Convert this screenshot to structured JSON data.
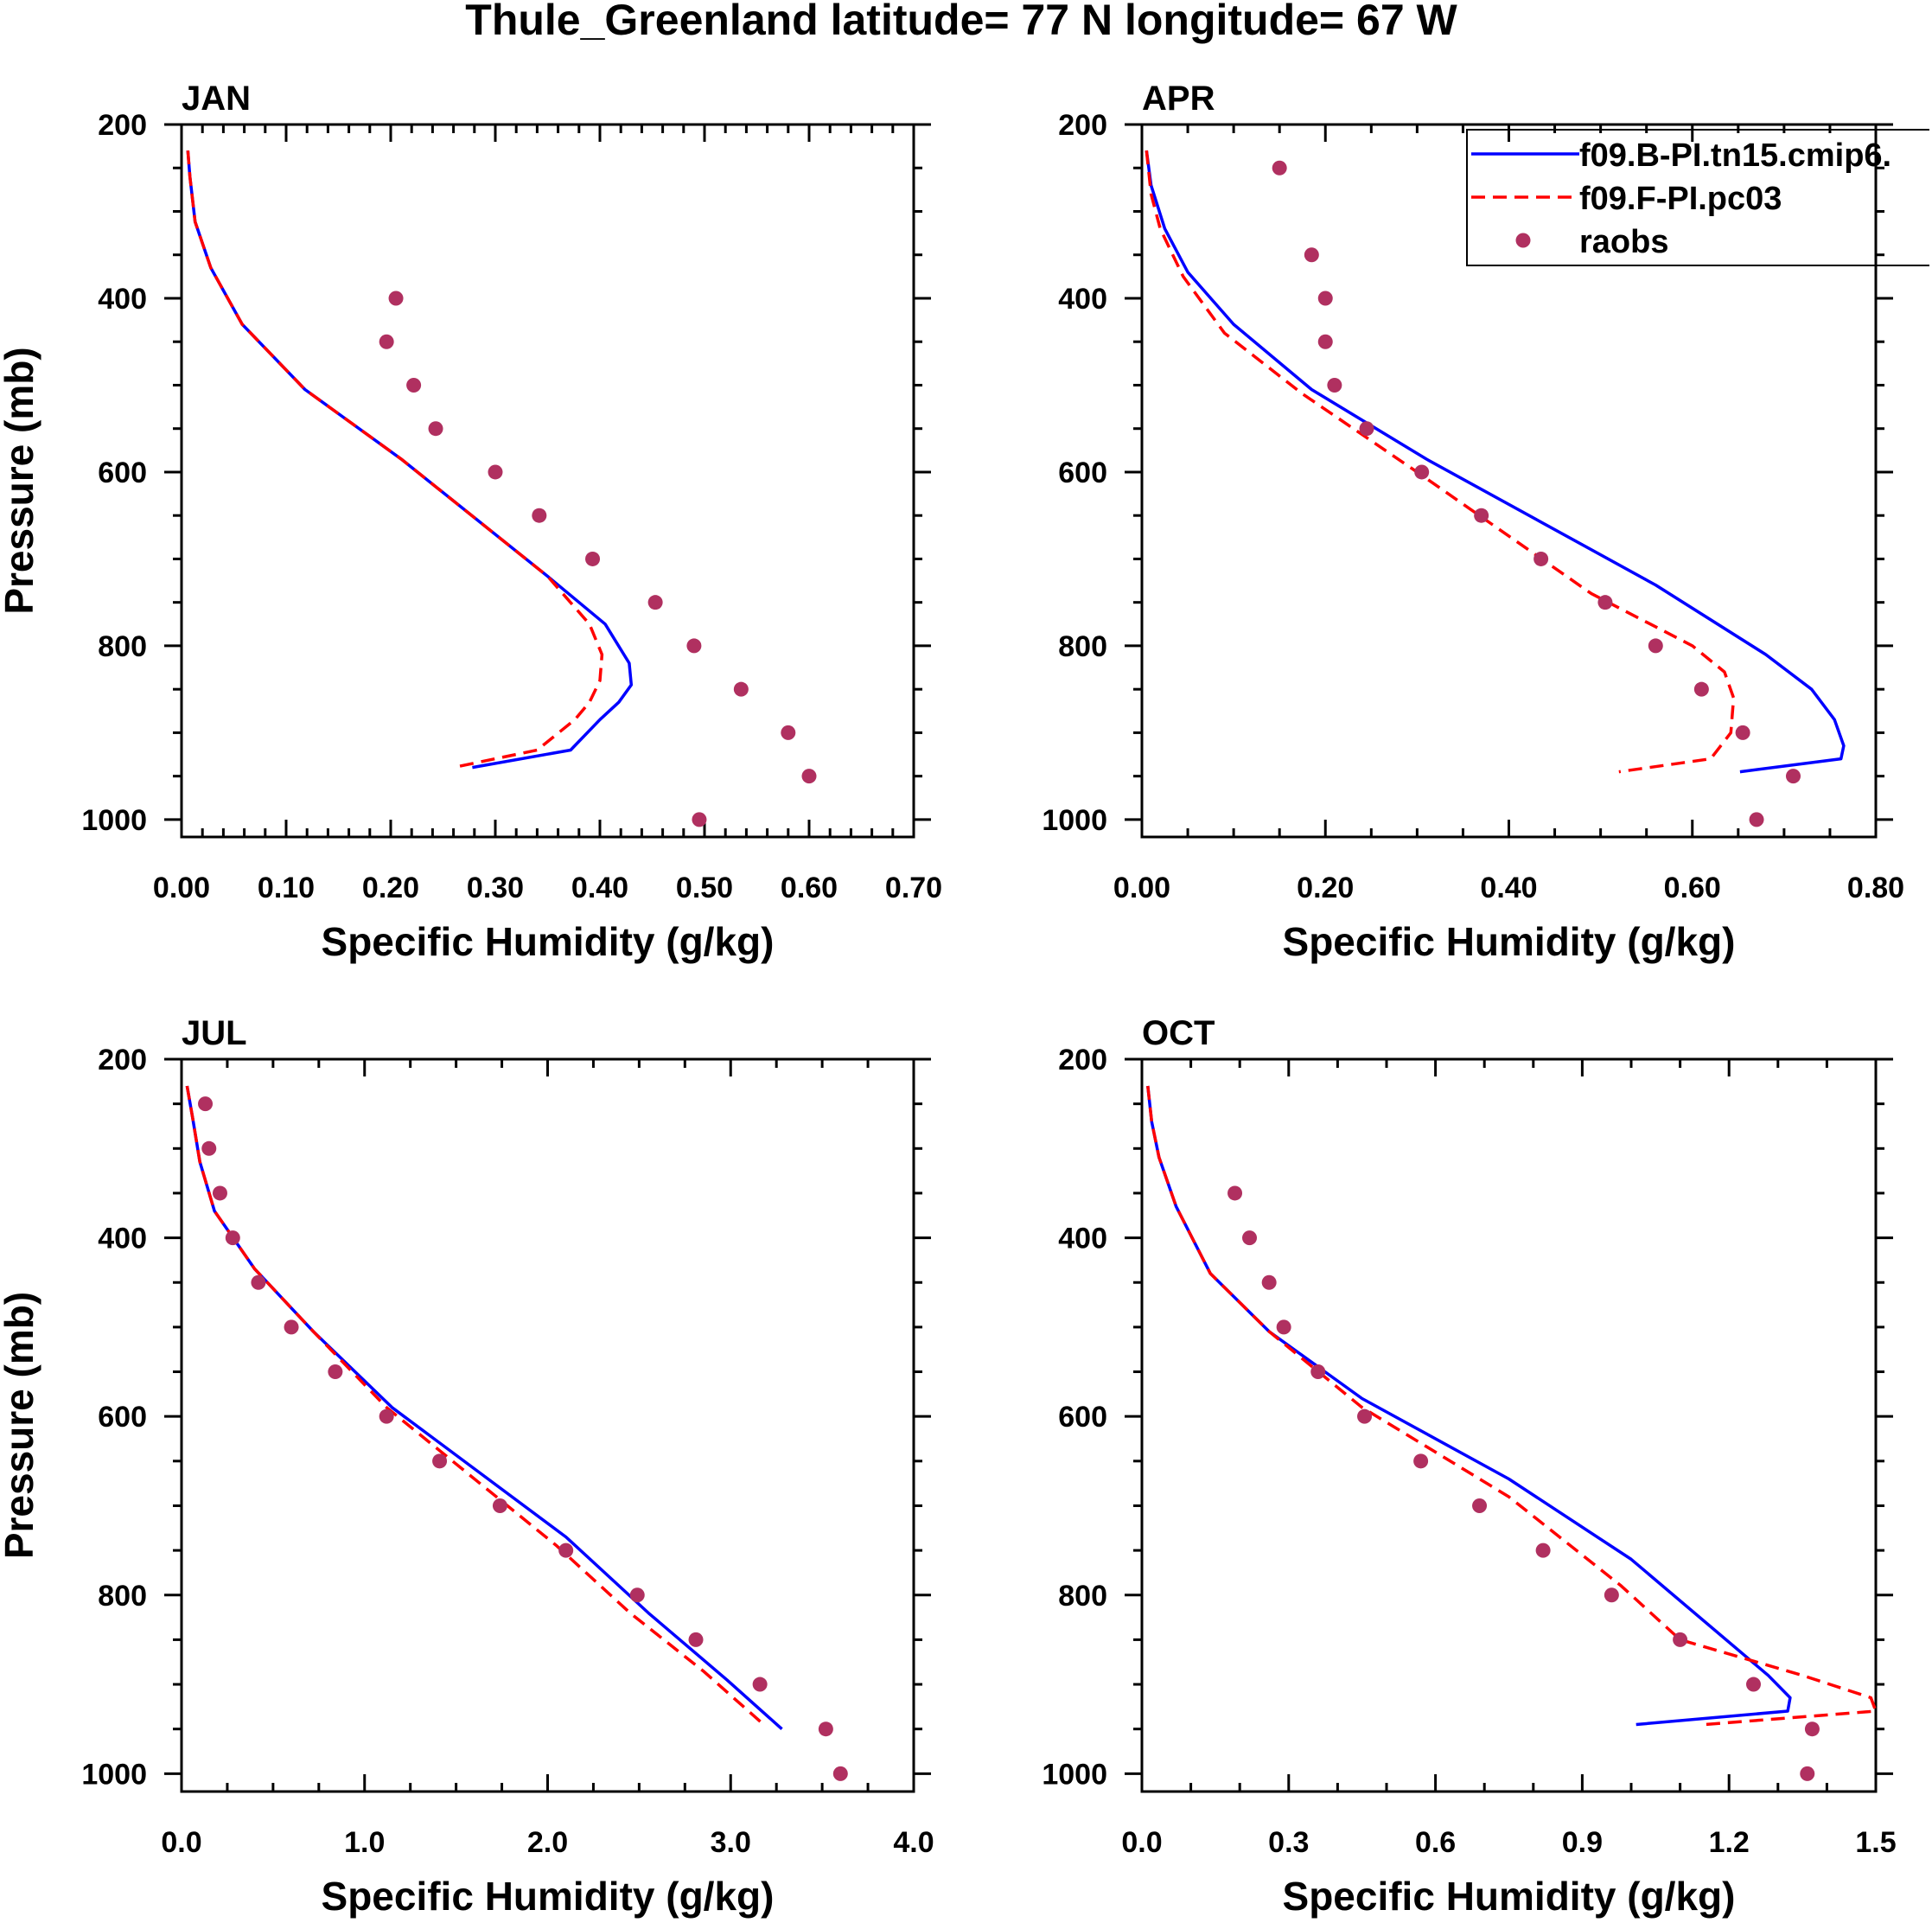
{
  "figure": {
    "title": "Thule_Greenland  latitude= 77 N longitude= 67 W"
  },
  "legend": {
    "entries": [
      {
        "label": "f09.B-PI.tn15.cmip6.",
        "series_key": "B",
        "color": "#0000ff",
        "style": "solid"
      },
      {
        "label": "f09.F-PI.pc03",
        "series_key": "F",
        "color": "#ff0000",
        "style": "dashed"
      },
      {
        "label": "raobs",
        "series_key": "obs",
        "color": "#b03060",
        "style": "markers"
      }
    ]
  },
  "chart_data": [
    {
      "type": "line",
      "title": "JAN",
      "xlabel": "Specific Humidity (g/kg)",
      "ylabel": "Pressure (mb)",
      "xlim": [
        0,
        0.7
      ],
      "xticks": [
        0,
        0.1,
        0.2,
        0.3,
        0.4,
        0.5,
        0.6,
        0.7
      ],
      "xticklabels": [
        "0.00",
        "0.10",
        "0.20",
        "0.30",
        "0.40",
        "0.50",
        "0.60",
        "0.70"
      ],
      "xminor": 0.02,
      "ylim": [
        1020,
        200
      ],
      "yticks": [
        200,
        400,
        600,
        800,
        1000
      ],
      "yticklabels": [
        "200",
        "400",
        "600",
        "800",
        "1000"
      ],
      "series": [
        {
          "name": "f09.B-PI.tn15.cmip6.",
          "key": "B",
          "x": [
            0.006,
            0.008,
            0.013,
            0.028,
            0.058,
            0.118,
            0.21,
            0.35,
            0.405,
            0.428,
            0.43,
            0.418,
            0.4,
            0.372,
            0.278
          ],
          "y": [
            230,
            260,
            312,
            365,
            430,
            505,
            585,
            720,
            775,
            820,
            845,
            865,
            885,
            920,
            940
          ]
        },
        {
          "name": "f09.F-PI.pc03",
          "key": "F",
          "x": [
            0.006,
            0.008,
            0.013,
            0.028,
            0.058,
            0.118,
            0.21,
            0.35,
            0.39,
            0.402,
            0.4,
            0.39,
            0.376,
            0.34,
            0.26
          ],
          "y": [
            230,
            260,
            312,
            365,
            430,
            505,
            585,
            720,
            775,
            810,
            840,
            865,
            885,
            920,
            940
          ]
        },
        {
          "name": "raobs",
          "key": "obs",
          "x": [
            0.205,
            0.196,
            0.222,
            0.243,
            0.3,
            0.342,
            0.393,
            0.453,
            0.49,
            0.535,
            0.58,
            0.6,
            0.495
          ],
          "y": [
            400,
            450,
            500,
            550,
            600,
            650,
            700,
            750,
            800,
            850,
            900,
            950,
            1000
          ]
        }
      ]
    },
    {
      "type": "line",
      "title": "APR",
      "xlabel": "Specific Humidity (g/kg)",
      "ylabel": "",
      "xlim": [
        0,
        0.8
      ],
      "xticks": [
        0,
        0.2,
        0.4,
        0.6,
        0.8
      ],
      "xticklabels": [
        "0.00",
        "0.20",
        "0.40",
        "0.60",
        "0.80"
      ],
      "xminor": 0.05,
      "ylim": [
        1020,
        200
      ],
      "yticks": [
        200,
        400,
        600,
        800,
        1000
      ],
      "yticklabels": [
        "200",
        "400",
        "600",
        "800",
        "1000"
      ],
      "series": [
        {
          "name": "f09.B-PI.tn15.cmip6.",
          "key": "B",
          "x": [
            0.005,
            0.01,
            0.025,
            0.05,
            0.1,
            0.185,
            0.31,
            0.56,
            0.68,
            0.73,
            0.755,
            0.765,
            0.762,
            0.652
          ],
          "y": [
            230,
            270,
            320,
            370,
            430,
            505,
            585,
            730,
            810,
            850,
            885,
            915,
            930,
            945
          ]
        },
        {
          "name": "f09.F-PI.pc03",
          "key": "F",
          "x": [
            0.005,
            0.01,
            0.02,
            0.045,
            0.09,
            0.175,
            0.3,
            0.49,
            0.6,
            0.635,
            0.645,
            0.642,
            0.62,
            0.52
          ],
          "y": [
            230,
            280,
            320,
            375,
            440,
            510,
            600,
            740,
            800,
            830,
            860,
            900,
            930,
            945
          ]
        },
        {
          "name": "raobs",
          "key": "obs",
          "x": [
            0.15,
            0.185,
            0.2,
            0.2,
            0.21,
            0.245,
            0.305,
            0.37,
            0.435,
            0.505,
            0.56,
            0.61,
            0.655,
            0.71,
            0.67
          ],
          "y": [
            250,
            350,
            400,
            450,
            500,
            550,
            600,
            650,
            700,
            750,
            800,
            850,
            900,
            950,
            1000
          ]
        }
      ]
    },
    {
      "type": "line",
      "title": "JUL",
      "xlabel": "Specific Humidity (g/kg)",
      "ylabel": "Pressure (mb)",
      "xlim": [
        0,
        4
      ],
      "xticks": [
        0,
        1,
        2,
        3,
        4
      ],
      "xticklabels": [
        "0.0",
        "1.0",
        "2.0",
        "3.0",
        "4.0"
      ],
      "xminor": 0.25,
      "ylim": [
        1020,
        200
      ],
      "yticks": [
        200,
        400,
        600,
        800,
        1000
      ],
      "yticklabels": [
        "200",
        "400",
        "600",
        "800",
        "1000"
      ],
      "series": [
        {
          "name": "f09.B-PI.tn15.cmip6.",
          "key": "B",
          "x": [
            0.03,
            0.06,
            0.1,
            0.18,
            0.4,
            0.72,
            1.15,
            2.1,
            2.55,
            2.98,
            3.28
          ],
          "y": [
            230,
            265,
            315,
            370,
            435,
            505,
            590,
            735,
            820,
            895,
            950
          ]
        },
        {
          "name": "f09.F-PI.pc03",
          "key": "F",
          "x": [
            0.03,
            0.06,
            0.1,
            0.18,
            0.4,
            0.72,
            1.12,
            2.05,
            2.45,
            2.85,
            3.18
          ],
          "y": [
            230,
            265,
            315,
            370,
            435,
            505,
            590,
            745,
            820,
            885,
            945
          ]
        },
        {
          "name": "raobs",
          "key": "obs",
          "x": [
            0.13,
            0.15,
            0.21,
            0.28,
            0.42,
            0.6,
            0.84,
            1.12,
            1.41,
            1.74,
            2.1,
            2.49,
            2.81,
            3.16,
            3.52,
            3.6
          ],
          "y": [
            250,
            300,
            350,
            400,
            450,
            500,
            550,
            600,
            650,
            700,
            750,
            800,
            850,
            900,
            950,
            1000
          ]
        }
      ]
    },
    {
      "type": "line",
      "title": "OCT",
      "xlabel": "Specific Humidity (g/kg)",
      "ylabel": "",
      "xlim": [
        0,
        1.5
      ],
      "xticks": [
        0,
        0.3,
        0.6,
        0.9,
        1.2,
        1.5
      ],
      "xticklabels": [
        "0.0",
        "0.3",
        "0.6",
        "0.9",
        "1.2",
        "1.5"
      ],
      "xminor": 0.1,
      "ylim": [
        1020,
        200
      ],
      "yticks": [
        200,
        400,
        600,
        800,
        1000
      ],
      "yticklabels": [
        "200",
        "400",
        "600",
        "800",
        "1000"
      ],
      "series": [
        {
          "name": "f09.B-PI.tn15.cmip6.",
          "key": "B",
          "x": [
            0.012,
            0.02,
            0.035,
            0.07,
            0.14,
            0.26,
            0.45,
            0.75,
            1.0,
            1.28,
            1.325,
            1.32,
            1.01
          ],
          "y": [
            230,
            270,
            310,
            365,
            440,
            505,
            580,
            670,
            760,
            890,
            915,
            930,
            945
          ]
        },
        {
          "name": "f09.F-PI.pc03",
          "key": "F",
          "x": [
            0.012,
            0.02,
            0.035,
            0.07,
            0.14,
            0.26,
            0.45,
            0.75,
            0.98,
            1.1,
            1.35,
            1.49,
            1.5,
            1.15
          ],
          "y": [
            230,
            270,
            310,
            365,
            440,
            505,
            590,
            690,
            790,
            850,
            890,
            915,
            930,
            945
          ]
        },
        {
          "name": "raobs",
          "key": "obs",
          "x": [
            0.19,
            0.22,
            0.26,
            0.29,
            0.36,
            0.455,
            0.57,
            0.69,
            0.82,
            0.96,
            1.1,
            1.25,
            1.37,
            1.36
          ],
          "y": [
            350,
            400,
            450,
            500,
            550,
            600,
            650,
            700,
            750,
            800,
            850,
            900,
            950,
            1000
          ]
        }
      ]
    }
  ]
}
